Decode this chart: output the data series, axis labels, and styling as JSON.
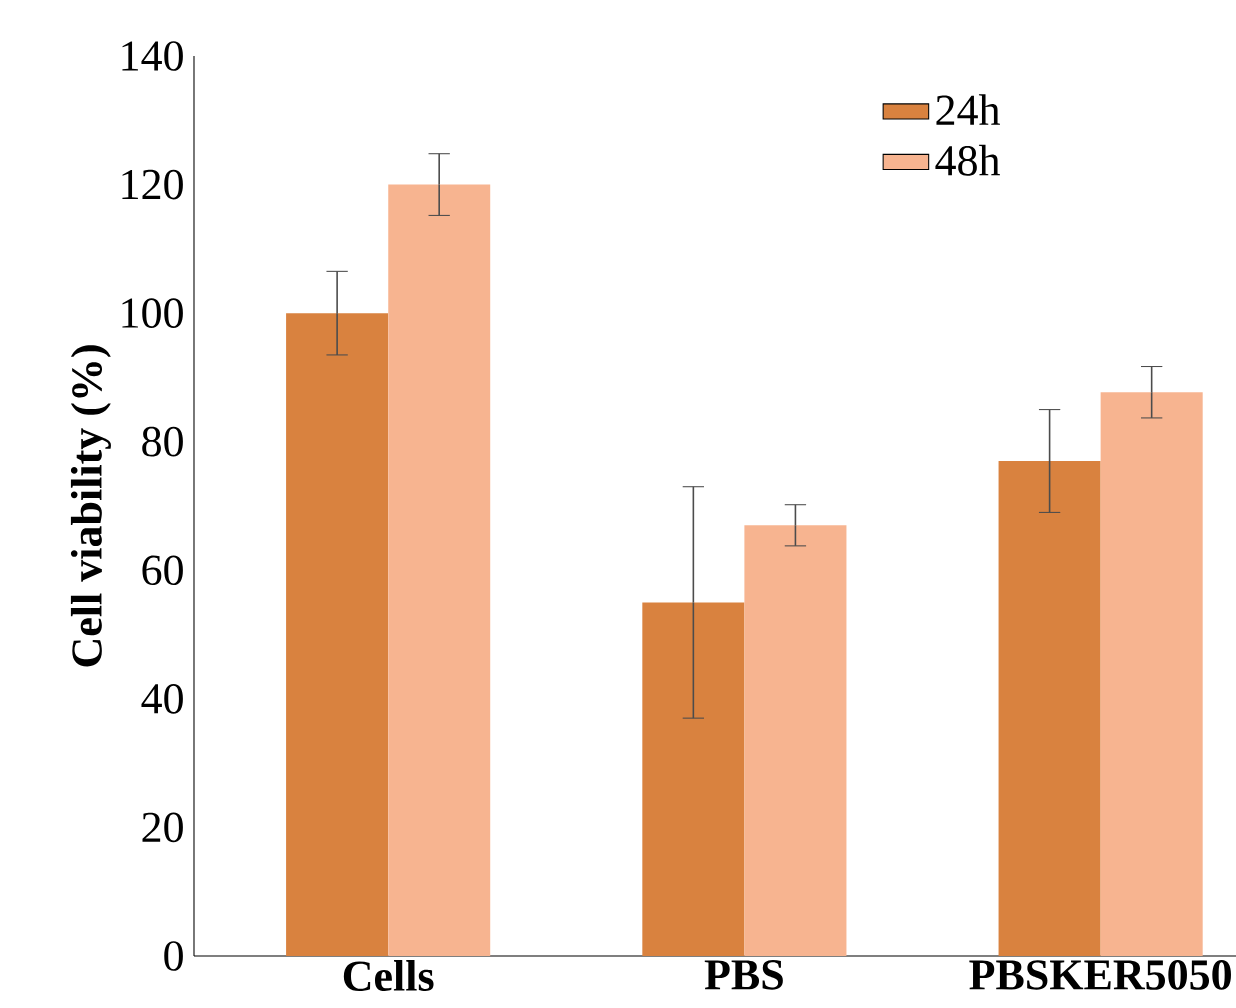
{
  "chart_data": {
    "type": "bar",
    "ylabel": "Cell viability (%)",
    "categories": [
      "Cells",
      "PBS",
      "PBSKER5050"
    ],
    "series": [
      {
        "name": "24h",
        "color": "#d9823f",
        "values": [
          100,
          55,
          77
        ],
        "errors": [
          6.5,
          18,
          8
        ]
      },
      {
        "name": "48h",
        "color": "#f7b490",
        "values": [
          120,
          67,
          87.7
        ],
        "errors": [
          4.8,
          3.2,
          4
        ]
      }
    ],
    "ylim": [
      0,
      140
    ],
    "yticks": [
      0,
      20,
      40,
      60,
      80,
      100,
      120,
      140
    ],
    "legend": "top right",
    "grid": false
  }
}
